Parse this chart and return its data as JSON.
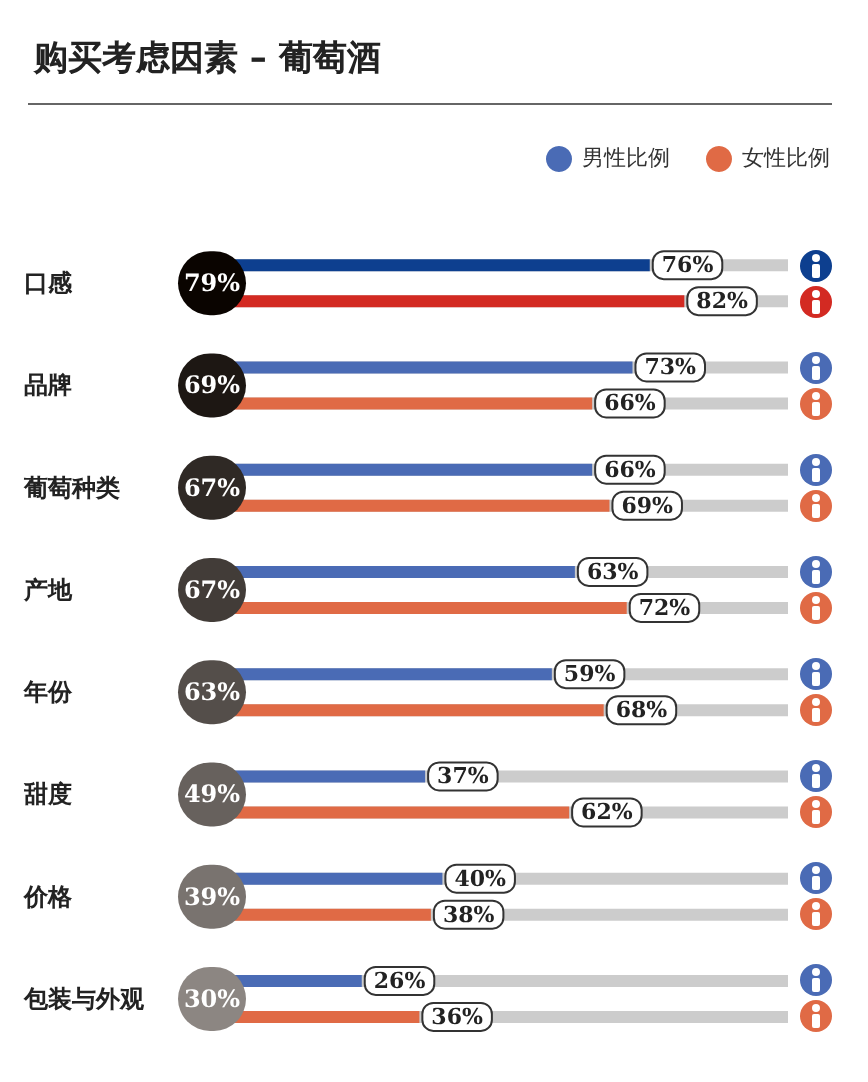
{
  "chart_data": {
    "type": "bar",
    "orientation": "horizontal",
    "title": "购买考虑因素 – 葡萄酒",
    "categories": [
      "口感",
      "品牌",
      "葡萄种类",
      "产地",
      "年份",
      "甜度",
      "价格",
      "包装与外观"
    ],
    "series": [
      {
        "name": "男性比例",
        "color": "#4a6bb5",
        "colors": [
          "#0d3f8f",
          "#4a6bb5",
          "#4a6bb5",
          "#4a6bb5",
          "#4a6bb5",
          "#4a6bb5",
          "#4a6bb5",
          "#4a6bb5"
        ],
        "values": [
          76,
          73,
          66,
          63,
          59,
          37,
          40,
          26
        ],
        "value_labels": [
          "76%",
          "73%",
          "66%",
          "63%",
          "59%",
          "37%",
          "40%",
          "26%"
        ]
      },
      {
        "name": "女性比例",
        "color": "#e06a45",
        "colors": [
          "#d32a22",
          "#e06a45",
          "#e06a45",
          "#e06a45",
          "#e06a45",
          "#e06a45",
          "#e06a45",
          "#e06a45"
        ],
        "values": [
          82,
          66,
          69,
          72,
          68,
          62,
          38,
          36
        ],
        "value_labels": [
          "82%",
          "66%",
          "69%",
          "72%",
          "68%",
          "62%",
          "38%",
          "36%"
        ]
      }
    ],
    "annotations": [
      {
        "text": "79%",
        "y": "口感"
      },
      {
        "text": "69%",
        "y": "品牌"
      },
      {
        "text": "67%",
        "y": "葡萄种类"
      },
      {
        "text": "67%",
        "y": "产地"
      },
      {
        "text": "63%",
        "y": "年份"
      },
      {
        "text": "49%",
        "y": "甜度"
      },
      {
        "text": "39%",
        "y": "价格"
      },
      {
        "text": "30%",
        "y": "包装与外观"
      }
    ],
    "tick_labels": "y",
    "legend": "top right",
    "grid": false
  }
}
